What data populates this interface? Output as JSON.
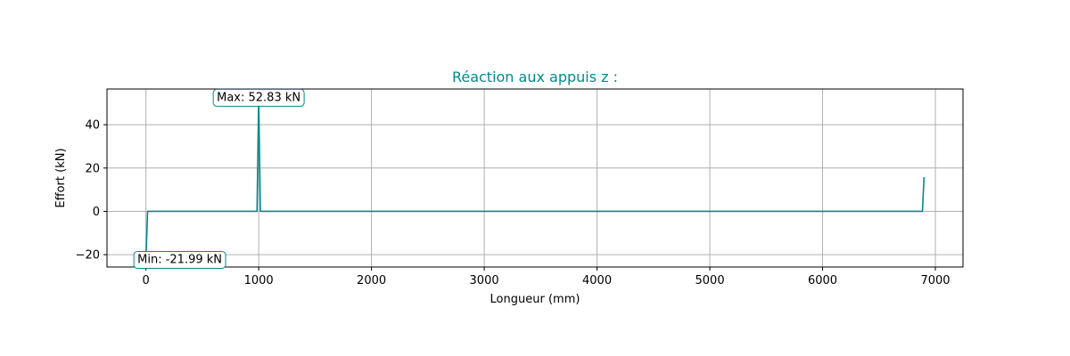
{
  "chart_data": {
    "type": "line",
    "title": "Réaction aux appuis z :",
    "xlabel": "Longueur (mm)",
    "ylabel": "Effort (kN)",
    "xlim": [
      -345,
      7245
    ],
    "ylim": [
      -25.7,
      56.5
    ],
    "xticks": [
      0,
      1000,
      2000,
      3000,
      4000,
      5000,
      6000,
      7000
    ],
    "yticks": [
      -20,
      0,
      20,
      40
    ],
    "grid": true,
    "colors": {
      "line": "#008b8b",
      "grid": "#b0b0b0",
      "annotation_border": "#008b8b"
    },
    "series": [
      {
        "x": [
          0,
          15,
          985,
          1000,
          1015,
          6885,
          6900
        ],
        "y": [
          -21.99,
          0,
          0,
          52.83,
          0,
          0,
          15.8
        ]
      }
    ],
    "annotations": [
      {
        "label": "Max: 52.83 kN",
        "x": 1000,
        "y": 52.83
      },
      {
        "label": "Min: -21.99 kN",
        "x": 300,
        "y": -21.99
      }
    ]
  }
}
